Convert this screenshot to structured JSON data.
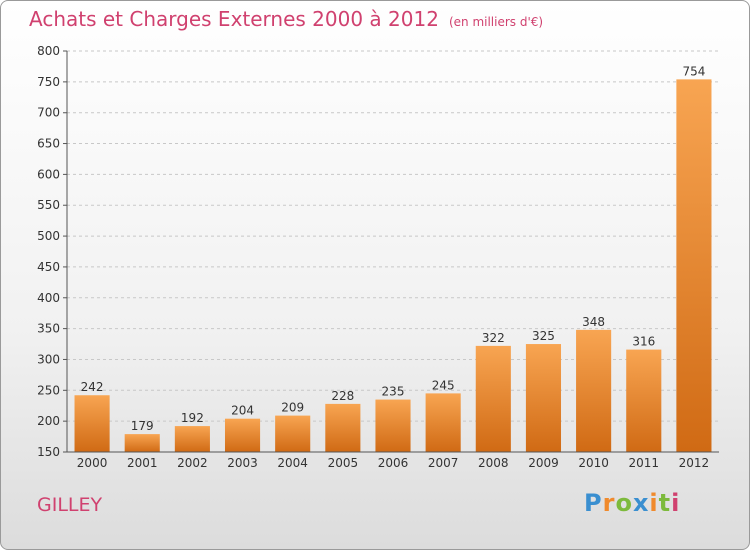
{
  "chart_data": {
    "type": "bar",
    "title": "Achats et Charges Externes 2000 à 2012",
    "subtitle": "(en milliers d'€)",
    "categories": [
      "2000",
      "2001",
      "2002",
      "2003",
      "2004",
      "2005",
      "2006",
      "2007",
      "2008",
      "2009",
      "2010",
      "2011",
      "2012"
    ],
    "values": [
      242,
      179,
      192,
      204,
      209,
      228,
      235,
      245,
      322,
      325,
      348,
      316,
      754
    ],
    "ylim": [
      150,
      800
    ],
    "yticks": [
      150,
      200,
      250,
      300,
      350,
      400,
      450,
      500,
      550,
      600,
      650,
      700,
      750,
      800
    ],
    "grid": "dashed horizontal",
    "bar_color": "#f08a2c"
  },
  "footer": {
    "commune": "GILLEY"
  },
  "logo": {
    "letters": [
      "P",
      "r",
      "o",
      "x",
      "i",
      "t",
      "i"
    ],
    "colors": [
      "#3a8fd0",
      "#f08a2c",
      "#7dba3c",
      "#3a8fd0",
      "#f08a2c",
      "#7dba3c",
      "#d0416f"
    ]
  }
}
